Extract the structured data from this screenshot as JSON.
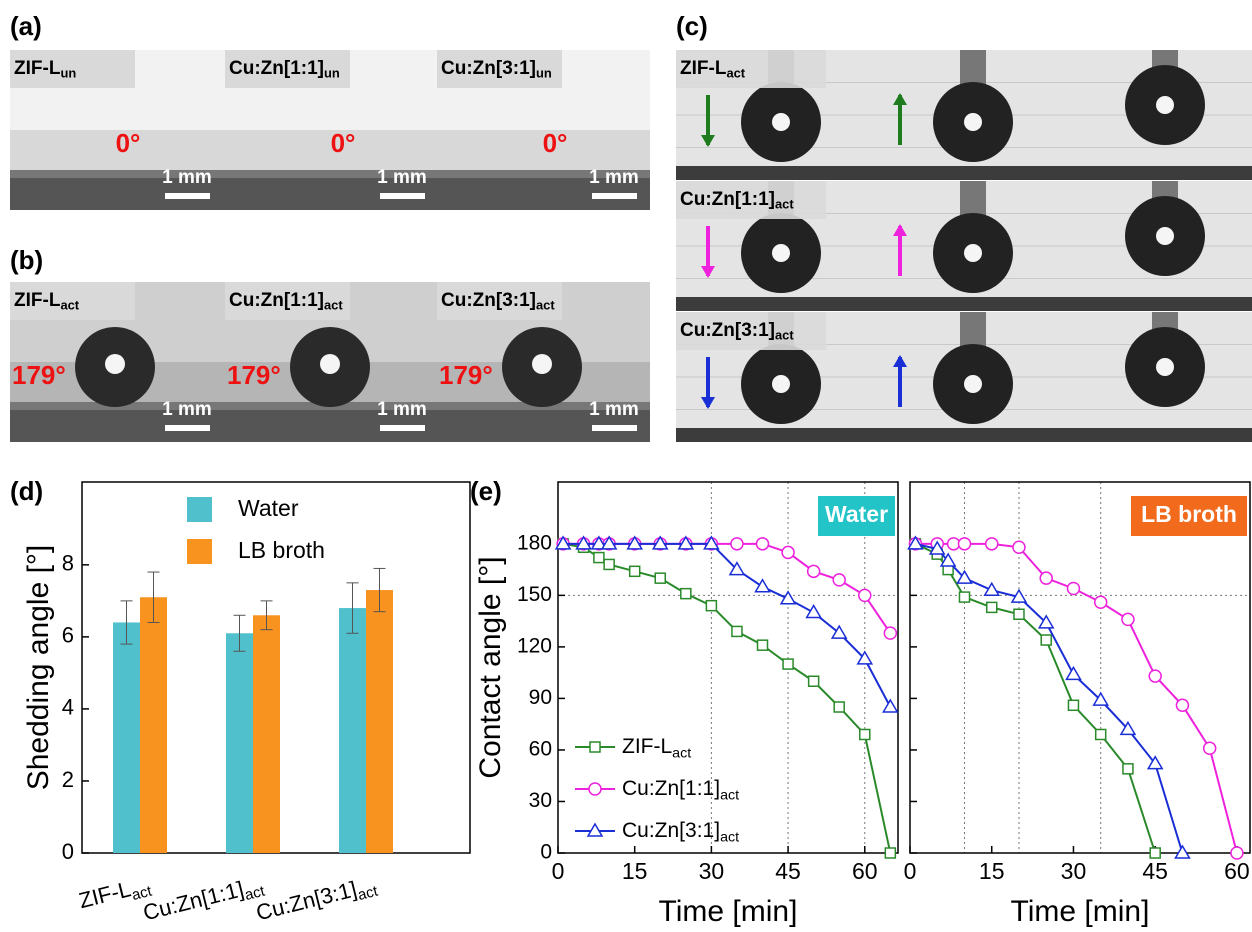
{
  "panels": {
    "a": "(a)",
    "b": "(b)",
    "c": "(c)",
    "d": "(d)",
    "e": "(e)"
  },
  "photos_a": {
    "labels": [
      {
        "text": "ZIF-L",
        "sub": "un"
      },
      {
        "text": "Cu:Zn[1:1]",
        "sub": "un"
      },
      {
        "text": "Cu:Zn[3:1]",
        "sub": "un"
      }
    ],
    "angles": [
      "0°",
      "0°",
      "0°"
    ],
    "scale": "1 mm"
  },
  "photos_b": {
    "labels": [
      {
        "text": "ZIF-L",
        "sub": "act"
      },
      {
        "text": "Cu:Zn[1:1]",
        "sub": "act"
      },
      {
        "text": "Cu:Zn[3:1]",
        "sub": "act"
      }
    ],
    "angles": [
      "179°",
      "179°",
      "179°"
    ],
    "scale": "1 mm"
  },
  "photos_c": {
    "labels": [
      {
        "text": "ZIF-L",
        "sub": "act"
      },
      {
        "text": "Cu:Zn[1:1]",
        "sub": "act"
      },
      {
        "text": "Cu:Zn[3:1]",
        "sub": "act"
      }
    ],
    "arrow_colors": [
      "#1e7b1e",
      "#ee22dd",
      "#1a2ed6"
    ]
  },
  "chart_data": [
    {
      "type": "bar",
      "y_label": "Shedding angle [°]",
      "categories": [
        {
          "text": "ZIF-L",
          "sub": "act"
        },
        {
          "text": "Cu:Zn[1:1]",
          "sub": "act"
        },
        {
          "text": "Cu:Zn[3:1]",
          "sub": "act"
        }
      ],
      "series": [
        {
          "name": "Water",
          "color": "#4fc0cc",
          "values": [
            6.4,
            6.1,
            6.8
          ],
          "errors": [
            0.6,
            0.5,
            0.7
          ]
        },
        {
          "name": "LB broth",
          "color": "#f7931e",
          "values": [
            7.1,
            6.6,
            7.3
          ],
          "errors": [
            0.7,
            0.4,
            0.6
          ]
        }
      ],
      "ylim": [
        0,
        10.3
      ],
      "yticks": [
        0,
        2,
        4,
        6,
        8
      ]
    },
    {
      "type": "line",
      "x_label": "Time [min]",
      "y_label": "Contact angle [°]",
      "tag": "Water",
      "tag_color": "#22c4c8",
      "xlim": [
        0,
        66.5
      ],
      "ylim": [
        0,
        216
      ],
      "xticks": [
        0,
        15,
        30,
        45,
        60
      ],
      "yticks": [
        0,
        30,
        60,
        90,
        120,
        150,
        180
      ],
      "vlines": [
        30,
        45,
        60
      ],
      "hlines": [
        150
      ],
      "series": [
        {
          "name": {
            "text": "ZIF-L",
            "sub": "act"
          },
          "color": "#2a8a2a",
          "marker": "square",
          "x": [
            1,
            5,
            8,
            10,
            15,
            20,
            25,
            30,
            35,
            40,
            45,
            50,
            55,
            60,
            65
          ],
          "values": [
            180,
            178,
            172,
            168,
            164,
            160,
            151,
            144,
            129,
            121,
            110,
            100,
            85,
            69,
            0
          ]
        },
        {
          "name": {
            "text": "Cu:Zn[1:1]",
            "sub": "act"
          },
          "color": "#ee22dd",
          "marker": "circle",
          "x": [
            1,
            5,
            8,
            10,
            15,
            20,
            25,
            30,
            35,
            40,
            45,
            50,
            55,
            60,
            65
          ],
          "values": [
            180,
            180,
            180,
            180,
            180,
            180,
            180,
            180,
            180,
            180,
            175,
            164,
            159,
            150,
            128
          ]
        },
        {
          "name": {
            "text": "Cu:Zn[3:1]",
            "sub": "act"
          },
          "color": "#1a2ed6",
          "marker": "triangle",
          "x": [
            1,
            5,
            8,
            10,
            15,
            20,
            25,
            30,
            35,
            40,
            45,
            50,
            55,
            60,
            65
          ],
          "values": [
            180,
            180,
            180,
            180,
            180,
            180,
            180,
            180,
            165,
            155,
            148,
            140,
            128,
            113,
            85
          ]
        }
      ]
    },
    {
      "type": "line",
      "x_label": "Time [min]",
      "tag": "LB broth",
      "tag_color": "#f26b1d",
      "xlim": [
        0,
        62.4
      ],
      "ylim": [
        0,
        216
      ],
      "xticks": [
        0,
        15,
        30,
        45,
        60
      ],
      "yticks": [
        0,
        30,
        60,
        90,
        120,
        150,
        180
      ],
      "vlines": [
        10,
        20,
        35
      ],
      "hlines": [
        150
      ],
      "series": [
        {
          "color": "#2a8a2a",
          "marker": "square",
          "x": [
            1,
            5,
            7,
            10,
            15,
            20,
            25,
            30,
            35,
            40,
            45
          ],
          "values": [
            180,
            174,
            165,
            149,
            143,
            139,
            124,
            86,
            69,
            49,
            0
          ]
        },
        {
          "color": "#ee22dd",
          "marker": "circle",
          "x": [
            1,
            5,
            8,
            10,
            15,
            20,
            25,
            30,
            35,
            40,
            45,
            50,
            55,
            60
          ],
          "values": [
            180,
            180,
            180,
            180,
            180,
            178,
            160,
            154,
            146,
            136,
            103,
            86,
            61,
            0
          ]
        },
        {
          "color": "#1a2ed6",
          "marker": "triangle",
          "x": [
            1,
            5,
            7,
            10,
            15,
            20,
            25,
            30,
            35,
            40,
            45,
            50
          ],
          "values": [
            180,
            177,
            170,
            160,
            153,
            149,
            134,
            104,
            89,
            72,
            52,
            0
          ]
        }
      ]
    }
  ]
}
